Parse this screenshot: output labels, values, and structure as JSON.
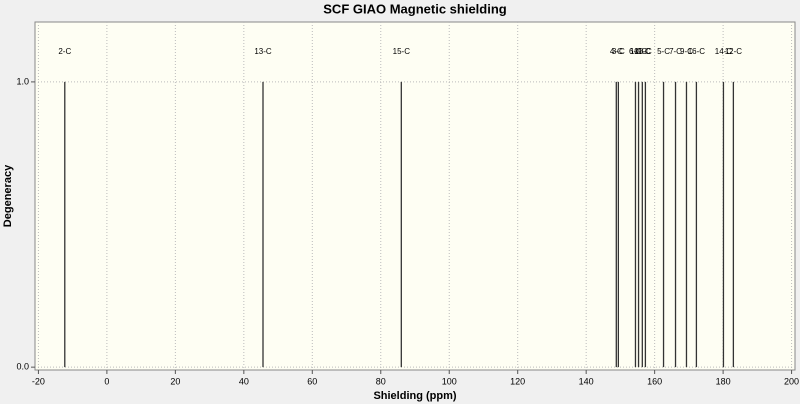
{
  "chart_data": {
    "type": "stick",
    "title": "SCF GIAO Magnetic shielding",
    "x_label": "Shielding (ppm)",
    "y_label": "Degeneracy",
    "categories": [
      "2-C",
      "13-C",
      "15-C",
      "4-C",
      "3-C",
      "6-C",
      "10-C",
      "11-C",
      "8-C",
      "5-C",
      "7-C",
      "9-C",
      "16-C",
      "14-C",
      "12-C"
    ],
    "x": [
      -12.3,
      45.6,
      86.0,
      148.8,
      149.4,
      154.4,
      155.3,
      156.4,
      157.3,
      162.6,
      166.1,
      169.3,
      172.2,
      180.1,
      183.0
    ],
    "values": [
      1,
      1,
      1,
      1,
      1,
      1,
      1,
      1,
      1,
      1,
      1,
      1,
      1,
      1,
      1
    ],
    "color": "#333333",
    "xlim": [
      -21,
      201
    ],
    "ylim": [
      -0.01,
      1.21
    ],
    "xticks": [
      -20,
      0,
      20,
      40,
      60,
      80,
      100,
      120,
      140,
      160,
      180,
      200
    ],
    "yticks": [
      {
        "value": 0,
        "label": "0.0"
      },
      {
        "value": 1,
        "label": "1.0"
      }
    ],
    "grid": true
  }
}
